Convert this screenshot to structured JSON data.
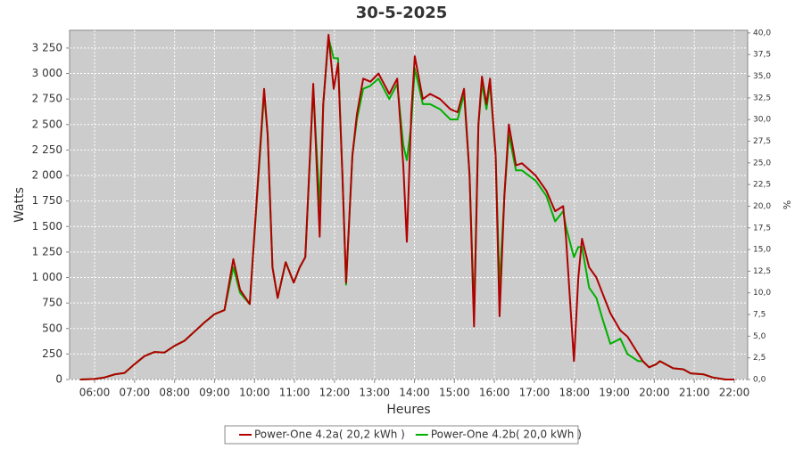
{
  "chart_data": {
    "type": "line",
    "title": "30-5-2025",
    "xlabel": "Heures",
    "ylabel": "Watts",
    "y2label": "%",
    "x": [
      5.64,
      6.0,
      6.25,
      6.5,
      6.75,
      7.0,
      7.25,
      7.5,
      7.75,
      8.0,
      8.25,
      8.5,
      8.75,
      9.0,
      9.25,
      9.47,
      9.64,
      9.88,
      10.24,
      10.33,
      10.45,
      10.58,
      10.78,
      10.98,
      11.13,
      11.27,
      11.47,
      11.63,
      11.72,
      11.85,
      11.98,
      12.09,
      12.2,
      12.29,
      12.45,
      12.56,
      12.72,
      12.9,
      13.1,
      13.37,
      13.57,
      13.72,
      13.81,
      13.92,
      14.01,
      14.21,
      14.39,
      14.64,
      14.9,
      15.08,
      15.24,
      15.38,
      15.49,
      15.6,
      15.69,
      15.8,
      15.89,
      16.03,
      16.13,
      16.25,
      16.36,
      16.54,
      16.69,
      17.03,
      17.3,
      17.52,
      17.72,
      17.79,
      17.92,
      17.99,
      18.1,
      18.19,
      18.37,
      18.55,
      18.7,
      18.9,
      19.15,
      19.33,
      19.6,
      19.71,
      19.87,
      20.05,
      20.14,
      20.47,
      20.73,
      20.91,
      21.24,
      21.46,
      21.78,
      22.0
    ],
    "series": [
      {
        "name": "Power-One 4.2a( 20,2 kWh )",
        "color": "#b00000",
        "values": [
          0,
          5,
          20,
          50,
          65,
          150,
          230,
          270,
          265,
          330,
          380,
          470,
          560,
          640,
          680,
          1180,
          880,
          740,
          2850,
          2400,
          1100,
          800,
          1150,
          950,
          1100,
          1200,
          2900,
          1400,
          2700,
          3380,
          2850,
          3100,
          2000,
          950,
          2200,
          2600,
          2950,
          2920,
          3000,
          2800,
          2950,
          2100,
          1350,
          2600,
          3170,
          2750,
          2800,
          2750,
          2650,
          2620,
          2850,
          2000,
          520,
          2500,
          2970,
          2700,
          2950,
          2200,
          620,
          1800,
          2500,
          2100,
          2120,
          2000,
          1850,
          1650,
          1700,
          1400,
          600,
          180,
          1000,
          1380,
          1100,
          1000,
          850,
          650,
          480,
          420,
          250,
          180,
          120,
          150,
          180,
          110,
          100,
          60,
          50,
          20,
          0,
          0
        ]
      },
      {
        "name": "Power-One 4.2b( 20,0 kWh )",
        "color": "#00b000",
        "values": [
          0,
          5,
          20,
          50,
          65,
          150,
          230,
          270,
          265,
          330,
          380,
          470,
          560,
          640,
          680,
          1100,
          850,
          740,
          2800,
          2400,
          1100,
          800,
          1150,
          950,
          1100,
          1200,
          2850,
          1700,
          2700,
          3350,
          3150,
          3150,
          2000,
          930,
          2200,
          2550,
          2850,
          2880,
          2950,
          2750,
          2900,
          2300,
          2150,
          2500,
          3050,
          2700,
          2700,
          2650,
          2550,
          2550,
          2800,
          2000,
          650,
          2500,
          2900,
          2650,
          2900,
          2200,
          900,
          1800,
          2400,
          2050,
          2050,
          1950,
          1800,
          1550,
          1650,
          1500,
          1300,
          1200,
          1300,
          1300,
          900,
          800,
          600,
          350,
          400,
          250,
          180,
          180,
          120,
          150,
          180,
          110,
          100,
          60,
          50,
          20,
          0,
          0
        ]
      }
    ],
    "xlim": [
      5.375,
      22.335
    ],
    "xticks": [
      {
        "value": 6,
        "label": "06:00"
      },
      {
        "value": 7,
        "label": "07:00"
      },
      {
        "value": 8,
        "label": "08:00"
      },
      {
        "value": 9,
        "label": "09:00"
      },
      {
        "value": 10,
        "label": "10:00"
      },
      {
        "value": 11,
        "label": "11:00"
      },
      {
        "value": 12,
        "label": "12:00"
      },
      {
        "value": 13,
        "label": "13:00"
      },
      {
        "value": 14,
        "label": "14:00"
      },
      {
        "value": 15,
        "label": "15:00"
      },
      {
        "value": 16,
        "label": "16:00"
      },
      {
        "value": 17,
        "label": "17:00"
      },
      {
        "value": 18,
        "label": "18:00"
      },
      {
        "value": 19,
        "label": "19:00"
      },
      {
        "value": 20,
        "label": "20:00"
      },
      {
        "value": 21,
        "label": "21:00"
      },
      {
        "value": 22,
        "label": "22:00"
      }
    ],
    "ylim": [
      0,
      3424
    ],
    "yticks": [
      0,
      250,
      500,
      750,
      {
        "value": 1000,
        "label": "1 000"
      },
      {
        "value": 1250,
        "label": "1 250"
      },
      {
        "value": 1500,
        "label": "1 500"
      },
      {
        "value": 1750,
        "label": "1 750"
      },
      {
        "value": 2000,
        "label": "2 000"
      },
      {
        "value": 2250,
        "label": "2 250"
      },
      {
        "value": 2500,
        "label": "2 500"
      },
      {
        "value": 2750,
        "label": "2 750"
      },
      {
        "value": 3000,
        "label": "3 000"
      },
      {
        "value": 3250,
        "label": "3 250"
      }
    ],
    "y2lim": [
      0,
      40.3
    ],
    "y2ticks": [
      {
        "value": 0,
        "label": "0,0"
      },
      {
        "value": 2.5,
        "label": "2,5"
      },
      {
        "value": 5,
        "label": "5,0"
      },
      {
        "value": 7.5,
        "label": "7,5"
      },
      {
        "value": 10,
        "label": "10,0"
      },
      {
        "value": 12.5,
        "label": "12,5"
      },
      {
        "value": 15,
        "label": "15,0"
      },
      {
        "value": 17.5,
        "label": "17,5"
      },
      {
        "value": 20,
        "label": "20,0"
      },
      {
        "value": 22.5,
        "label": "22,5"
      },
      {
        "value": 25,
        "label": "25,0"
      },
      {
        "value": 27.5,
        "label": "27,5"
      },
      {
        "value": 30,
        "label": "30,0"
      },
      {
        "value": 32.5,
        "label": "32,5"
      },
      {
        "value": 35,
        "label": "35,0"
      },
      {
        "value": 37.5,
        "label": "37,5"
      },
      {
        "value": 40,
        "label": "40,0"
      }
    ],
    "grid": true,
    "legend": "bottom",
    "background": "#cccccc"
  }
}
